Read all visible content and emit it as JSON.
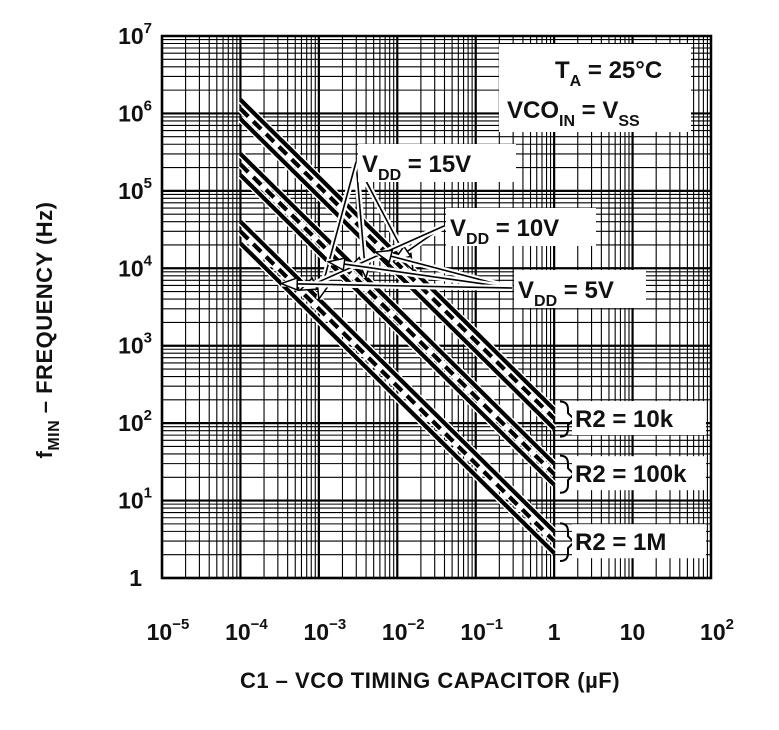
{
  "chart_data": {
    "type": "line",
    "title": "",
    "xlabel": "C1 – VCO TIMING CAPACITOR (µF)",
    "ylabel": {
      "main": "f",
      "sub": "MIN",
      "rest": " – FREQUENCY (Hz)"
    },
    "x_scale": "log",
    "y_scale": "log",
    "xlim": [
      1e-05,
      100
    ],
    "ylim": [
      1,
      10000000
    ],
    "grid": true,
    "x_ticks": [
      {
        "base": "10",
        "exp": "−5",
        "value": 1e-05
      },
      {
        "base": "10",
        "exp": "−4",
        "value": 0.0001
      },
      {
        "base": "10",
        "exp": "−3",
        "value": 0.001
      },
      {
        "base": "10",
        "exp": "−2",
        "value": 0.01
      },
      {
        "base": "10",
        "exp": "−1",
        "value": 0.1
      },
      {
        "base": "1",
        "exp": "",
        "value": 1
      },
      {
        "base": "10",
        "exp": "",
        "value": 10
      },
      {
        "base": "10",
        "exp": "2",
        "value": 100
      }
    ],
    "y_ticks": [
      {
        "base": "1",
        "exp": "",
        "value": 1
      },
      {
        "base": "10",
        "exp": "1",
        "value": 10
      },
      {
        "base": "10",
        "exp": "2",
        "value": 100
      },
      {
        "base": "10",
        "exp": "3",
        "value": 1000
      },
      {
        "base": "10",
        "exp": "4",
        "value": 10000
      },
      {
        "base": "10",
        "exp": "5",
        "value": 100000
      },
      {
        "base": "10",
        "exp": "6",
        "value": 1000000
      },
      {
        "base": "10",
        "exp": "7",
        "value": 10000000
      }
    ],
    "conditions": [
      {
        "main": "T",
        "sub": "A",
        "rest": " = 25°C"
      },
      {
        "main": "VCO",
        "sub": "IN",
        "rest": " = V",
        "sub2": "SS"
      }
    ],
    "series": [
      {
        "group": "R2 = 10k",
        "vdd": "15V",
        "style": "solid",
        "x": [
          0.0001,
          1
        ],
        "y": [
          1500000,
          150
        ]
      },
      {
        "group": "R2 = 10k",
        "vdd": "10V",
        "style": "dashed",
        "x": [
          0.0001,
          1
        ],
        "y": [
          1150000,
          115
        ]
      },
      {
        "group": "R2 = 10k",
        "vdd": "5V",
        "style": "solid",
        "x": [
          0.0001,
          1
        ],
        "y": [
          850000,
          85
        ]
      },
      {
        "group": "R2 = 100k",
        "vdd": "15V",
        "style": "solid",
        "x": [
          0.0001,
          1
        ],
        "y": [
          300000,
          30
        ]
      },
      {
        "group": "R2 = 100k",
        "vdd": "10V",
        "style": "dashed",
        "x": [
          0.0001,
          1
        ],
        "y": [
          220000,
          22
        ]
      },
      {
        "group": "R2 = 100k",
        "vdd": "5V",
        "style": "solid",
        "x": [
          0.0001,
          1
        ],
        "y": [
          160000,
          16
        ]
      },
      {
        "group": "R2 = 1M",
        "vdd": "15V",
        "style": "solid",
        "x": [
          0.0001,
          1
        ],
        "y": [
          40000,
          4
        ]
      },
      {
        "group": "R2 = 1M",
        "vdd": "10V",
        "style": "dashed",
        "x": [
          0.0001,
          1
        ],
        "y": [
          30000,
          3
        ]
      },
      {
        "group": "R2 = 1M",
        "vdd": "5V",
        "style": "solid",
        "x": [
          0.0001,
          1
        ],
        "y": [
          21000,
          2.1
        ]
      }
    ],
    "vdd_labels": [
      {
        "main": "V",
        "sub": "DD",
        "rest": " = 15V",
        "vdd": "15V",
        "anchor": [
          0.03,
          200000
        ]
      },
      {
        "main": "V",
        "sub": "DD",
        "rest": " = 10V",
        "vdd": "10V",
        "anchor": [
          0.25,
          30000
        ]
      },
      {
        "main": "V",
        "sub": "DD",
        "rest": " = 5V",
        "vdd": "5V",
        "anchor": [
          1.6,
          3200
        ]
      }
    ],
    "r2_labels": [
      {
        "text": "R2 = 10k",
        "group": "R2 = 10k",
        "y_range": [
          85,
          150
        ]
      },
      {
        "text": "R2 = 100k",
        "group": "R2 = 100k",
        "y_range": [
          16,
          30
        ]
      },
      {
        "text": "R2 = 1M",
        "group": "R2 = 1M",
        "y_range": [
          2.1,
          4
        ]
      }
    ]
  }
}
